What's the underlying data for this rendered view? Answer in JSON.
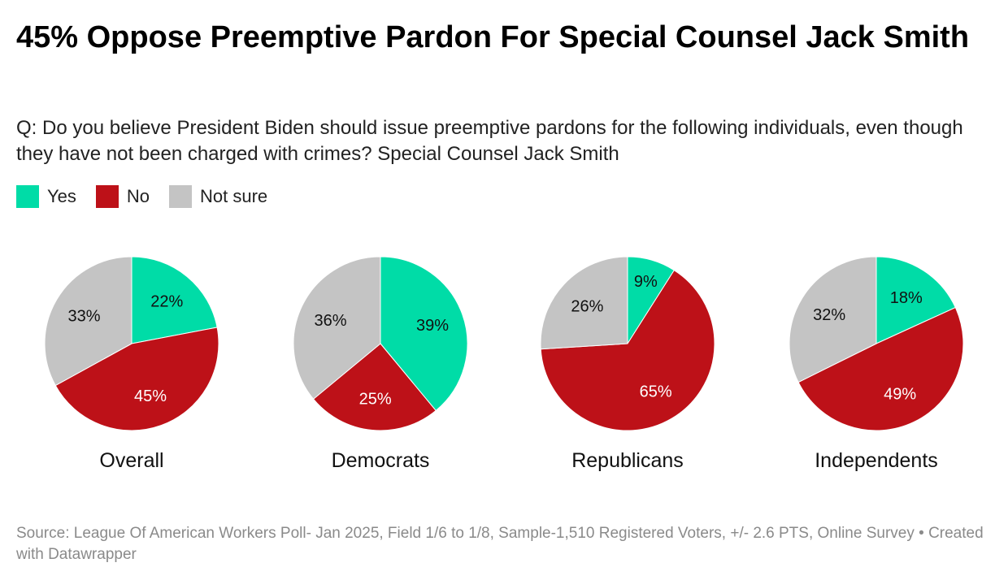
{
  "title": "45% Oppose Preemptive Pardon For Special Counsel Jack Smith",
  "subtitle": "Q: Do you believe President Biden should issue preemptive pardons for the following individuals, even though they have not been charged with crimes? Special Counsel Jack Smith",
  "legend": [
    {
      "label": "Yes",
      "color": "#00dca7"
    },
    {
      "label": "No",
      "color": "#bd1118"
    },
    {
      "label": "Not sure",
      "color": "#c4c4c4"
    }
  ],
  "footer": "Source: League Of American Workers Poll- Jan 2025, Field 1/6 to 1/8, Sample-1,510 Registered Voters, +/- 2.6 PTS, Online Survey • Created with Datawrapper",
  "chart_data": [
    {
      "type": "pie",
      "title": "Overall",
      "labels": [
        "Yes",
        "No",
        "Not sure"
      ],
      "values": [
        22,
        45,
        33
      ]
    },
    {
      "type": "pie",
      "title": "Democrats",
      "labels": [
        "Yes",
        "No",
        "Not sure"
      ],
      "values": [
        39,
        25,
        36
      ]
    },
    {
      "type": "pie",
      "title": "Republicans",
      "labels": [
        "Yes",
        "No",
        "Not sure"
      ],
      "values": [
        9,
        65,
        26
      ]
    },
    {
      "type": "pie",
      "title": "Independents",
      "labels": [
        "Yes",
        "No",
        "Not sure"
      ],
      "values": [
        18,
        49,
        32
      ]
    }
  ]
}
